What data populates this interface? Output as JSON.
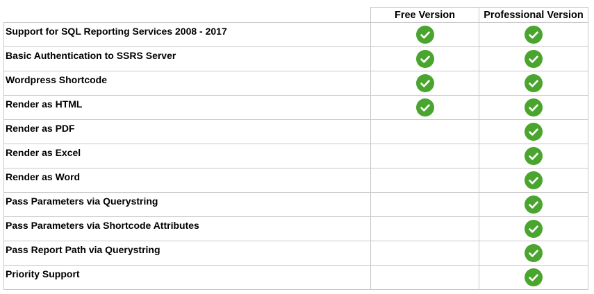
{
  "header": {
    "free": "Free Version",
    "pro": "Professional Version"
  },
  "colors": {
    "check": "#4aa52e",
    "border": "#c8c8c8"
  },
  "icon": "check-circle-icon",
  "rows": [
    {
      "feature": "Support for SQL Reporting Services 2008 - 2017",
      "free": true,
      "pro": true
    },
    {
      "feature": "Basic Authentication to SSRS Server",
      "free": true,
      "pro": true
    },
    {
      "feature": "Wordpress Shortcode",
      "free": true,
      "pro": true
    },
    {
      "feature": "Render as HTML",
      "free": true,
      "pro": true
    },
    {
      "feature": "Render as PDF",
      "free": false,
      "pro": true
    },
    {
      "feature": "Render as Excel",
      "free": false,
      "pro": true
    },
    {
      "feature": "Render as Word",
      "free": false,
      "pro": true
    },
    {
      "feature": "Pass Parameters via Querystring",
      "free": false,
      "pro": true
    },
    {
      "feature": "Pass Parameters via Shortcode Attributes",
      "free": false,
      "pro": true
    },
    {
      "feature": "Pass Report Path via Querystring",
      "free": false,
      "pro": true
    },
    {
      "feature": "Priority Support",
      "free": false,
      "pro": true
    }
  ]
}
